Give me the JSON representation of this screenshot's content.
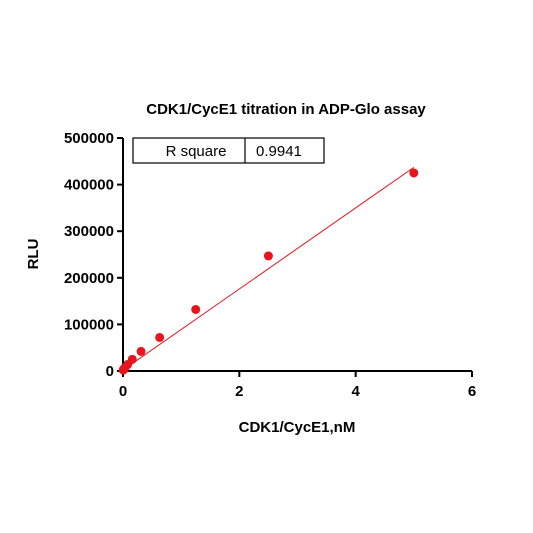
{
  "chart_data": {
    "type": "scatter",
    "title": "CDK1/CycE1 titration in ADP-Glo assay",
    "xlabel": "CDK1/CycE1,nM",
    "ylabel": "RLU",
    "xlim": [
      0,
      6
    ],
    "ylim": [
      0,
      500000
    ],
    "x_ticks": [
      0,
      2,
      4,
      6
    ],
    "y_ticks": [
      0,
      100000,
      200000,
      300000,
      400000,
      500000
    ],
    "series": [
      {
        "color": "#e8141e",
        "points": [
          {
            "x": 0.005,
            "y": 2000
          },
          {
            "x": 0.01,
            "y": 3500
          },
          {
            "x": 0.02,
            "y": 5000
          },
          {
            "x": 0.04,
            "y": 8000
          },
          {
            "x": 0.08,
            "y": 14000
          },
          {
            "x": 0.16,
            "y": 25000
          },
          {
            "x": 0.31,
            "y": 42000
          },
          {
            "x": 0.63,
            "y": 72000
          },
          {
            "x": 1.25,
            "y": 132000
          },
          {
            "x": 2.5,
            "y": 247000
          },
          {
            "x": 5.0,
            "y": 425000
          }
        ]
      }
    ],
    "fit_line": {
      "color": "#e8141e",
      "x": [
        0,
        5.0
      ],
      "y": [
        2000,
        437000
      ]
    },
    "stats": {
      "label": "R square",
      "value": "0.9941"
    },
    "grid": false
  }
}
